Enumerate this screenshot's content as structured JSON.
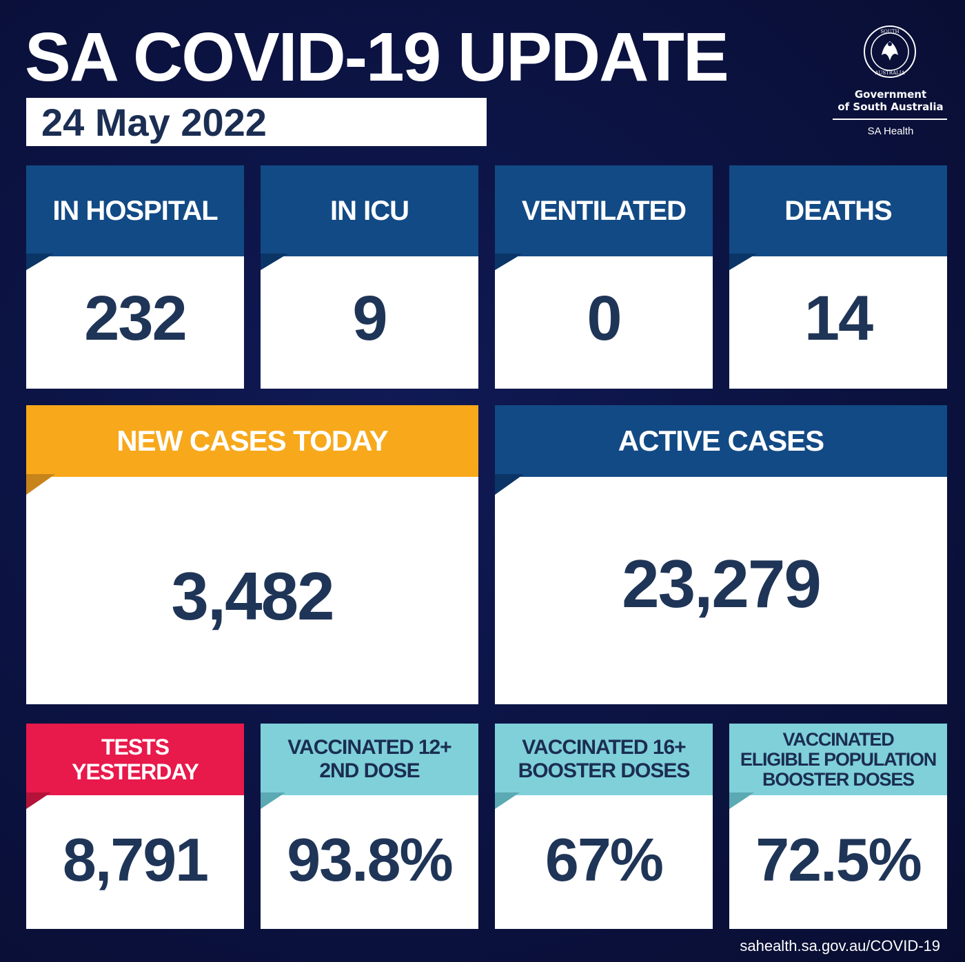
{
  "header": {
    "title": "SA COVID-19 UPDATE",
    "date": "24 May 2022"
  },
  "logo": {
    "seal_top": "SOUTH",
    "seal_bottom": "AUSTRALIA",
    "line1": "Government",
    "line2": "of South Australia",
    "line3": "SA Health"
  },
  "stats": {
    "in_hospital": {
      "label": "IN HOSPITAL",
      "value": "232"
    },
    "in_icu": {
      "label": "IN ICU",
      "value": "9"
    },
    "ventilated": {
      "label": "VENTILATED",
      "value": "0"
    },
    "deaths": {
      "label": "DEATHS",
      "value": "14"
    },
    "new_cases": {
      "label": "NEW CASES TODAY",
      "value": "3,482"
    },
    "active_cases": {
      "label": "ACTIVE CASES",
      "value": "23,279"
    },
    "tests": {
      "label_line1": "TESTS",
      "label_line2": "YESTERDAY",
      "value": "8,791"
    },
    "vacc_12": {
      "label_line1": "VACCINATED 12+",
      "label_line2": "2ND DOSE",
      "value": "93.8%"
    },
    "vacc_16": {
      "label_line1": "VACCINATED 16+",
      "label_line2": "BOOSTER DOSES",
      "value": "67%"
    },
    "vacc_eligible": {
      "label_line1": "VACCINATED",
      "label_line2": "ELIGIBLE POPULATION",
      "label_line3": "BOOSTER DOSES",
      "value": "72.5%"
    }
  },
  "footer": {
    "url": "sahealth.sa.gov.au/COVID-19"
  },
  "colors": {
    "background": "#0c1445",
    "header_blue": "#124a85",
    "header_orange": "#f7a81b",
    "header_red": "#e8194b",
    "header_cyan": "#7fd0d9",
    "value_text": "#1f3557"
  }
}
